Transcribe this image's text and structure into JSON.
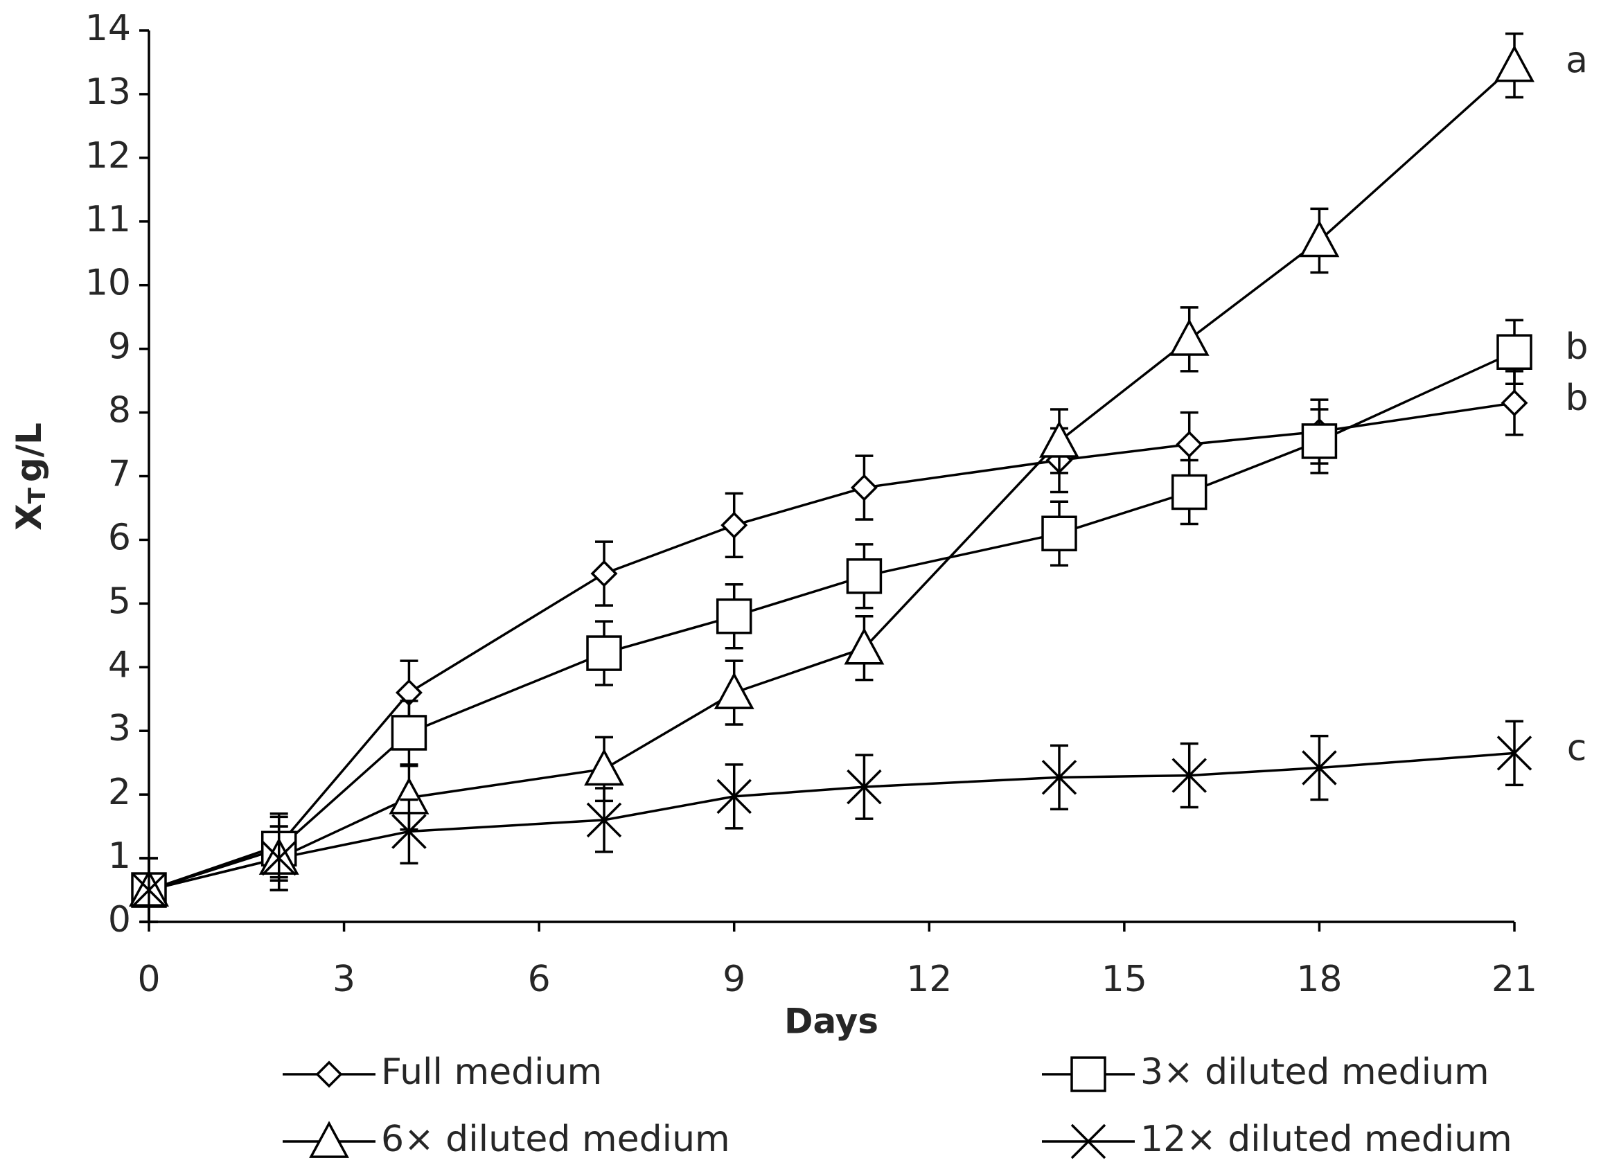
{
  "chart_data": {
    "type": "line",
    "xlabel": "Days",
    "ylabel": {
      "main": "X",
      "subscript": "T",
      "unit": "g/L"
    },
    "x": [
      0,
      2,
      4,
      7,
      9,
      11,
      14,
      16,
      18,
      21
    ],
    "xlim": [
      0,
      21
    ],
    "xticks": [
      0,
      3,
      6,
      9,
      12,
      15,
      18,
      21
    ],
    "ylim": [
      0,
      14
    ],
    "yticks": [
      0,
      1,
      2,
      3,
      4,
      5,
      6,
      7,
      8,
      9,
      10,
      11,
      12,
      13,
      14
    ],
    "grid": false,
    "series": [
      {
        "name": "Full medium",
        "color": "#000000",
        "marker": "diamond",
        "values": [
          0.5,
          1.2,
          3.6,
          5.47,
          6.23,
          6.82,
          7.25,
          7.5,
          7.7,
          8.15
        ],
        "errors": [
          0.5,
          0.5,
          0.5,
          0.5,
          0.5,
          0.5,
          0.5,
          0.5,
          0.5,
          0.5
        ]
      },
      {
        "name": "3× diluted medium",
        "color": "#000000",
        "marker": "square",
        "values": [
          0.5,
          1.15,
          2.97,
          4.22,
          4.8,
          5.43,
          6.1,
          6.75,
          7.55,
          8.95
        ],
        "errors": [
          0.5,
          0.5,
          0.5,
          0.5,
          0.5,
          0.5,
          0.5,
          0.5,
          0.5,
          0.5
        ]
      },
      {
        "name": "6× diluted medium",
        "color": "#000000",
        "marker": "triangle",
        "values": [
          0.5,
          1.0,
          1.95,
          2.4,
          3.6,
          4.3,
          7.55,
          9.15,
          10.7,
          13.45
        ],
        "errors": [
          0.5,
          0.5,
          0.5,
          0.5,
          0.5,
          0.5,
          0.5,
          0.5,
          0.5,
          0.5
        ]
      },
      {
        "name": "12× diluted medium",
        "color": "#000000",
        "marker": "x",
        "values": [
          0.5,
          1.0,
          1.42,
          1.6,
          1.97,
          2.12,
          2.27,
          2.3,
          2.42,
          2.65
        ],
        "errors": [
          0.5,
          0.5,
          0.5,
          0.5,
          0.5,
          0.5,
          0.5,
          0.5,
          0.5,
          0.5
        ]
      }
    ],
    "annotations": [
      "a",
      "b",
      "b",
      "c"
    ]
  }
}
